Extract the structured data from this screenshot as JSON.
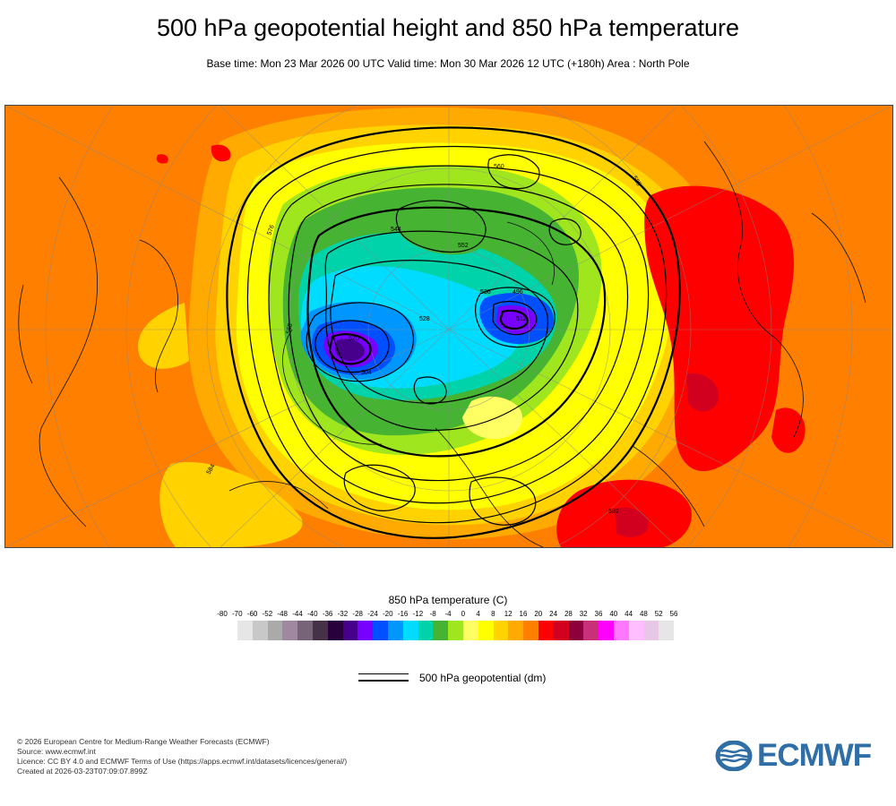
{
  "header": {
    "title": "500 hPa geopotential height and 850 hPa temperature",
    "subtitle": "Base time: Mon 23 Mar 2026 00 UTC Valid time: Mon 30 Mar 2026 12 UTC (+180h) Area : North Pole"
  },
  "map": {
    "contour_labels": [
      "584",
      "576",
      "568",
      "560",
      "552",
      "544",
      "536",
      "528",
      "520",
      "512",
      "504",
      "496",
      "588",
      "592"
    ],
    "legend": {
      "title": "850 hPa temperature (C)",
      "ticks": [
        "-80",
        "-70",
        "-60",
        "-52",
        "-48",
        "-44",
        "-40",
        "-36",
        "-32",
        "-28",
        "-24",
        "-20",
        "-16",
        "-12",
        "-8",
        "-4",
        "0",
        "4",
        "8",
        "12",
        "16",
        "20",
        "24",
        "28",
        "32",
        "36",
        "40",
        "44",
        "48",
        "52",
        "56"
      ],
      "colors": [
        "#e6e6e6",
        "#c8c8c8",
        "#aaaaaa",
        "#a088a0",
        "#786478",
        "#463246",
        "#28003c",
        "#46008c",
        "#7800ff",
        "#0050ff",
        "#0096ff",
        "#00dcff",
        "#00d2aa",
        "#46b432",
        "#a0e61e",
        "#ffff64",
        "#ffff00",
        "#ffd200",
        "#ffaa00",
        "#ff7f00",
        "#ff0000",
        "#d2001e",
        "#8c003c",
        "#c8307a",
        "#ff00ff",
        "#ff78ff",
        "#ffbeff",
        "#e6c8e6",
        "#e6e6e6"
      ]
    },
    "geopotential_legend_label": "500 hPa geopotential (dm)"
  },
  "credits": {
    "copyright": "© 2026 European Centre for Medium-Range Weather Forecasts (ECMWF)",
    "source": "Source: www.ecmwf.int",
    "licence": "Licence: CC BY 4.0 and ECMWF Terms of Use (https://apps.ecmwf.int/datasets/licences/general/)",
    "created": "Created at 2026-03-23T07:09:07.899Z"
  },
  "logo": {
    "text": "ECMWF",
    "color": "#2f6ea6"
  }
}
